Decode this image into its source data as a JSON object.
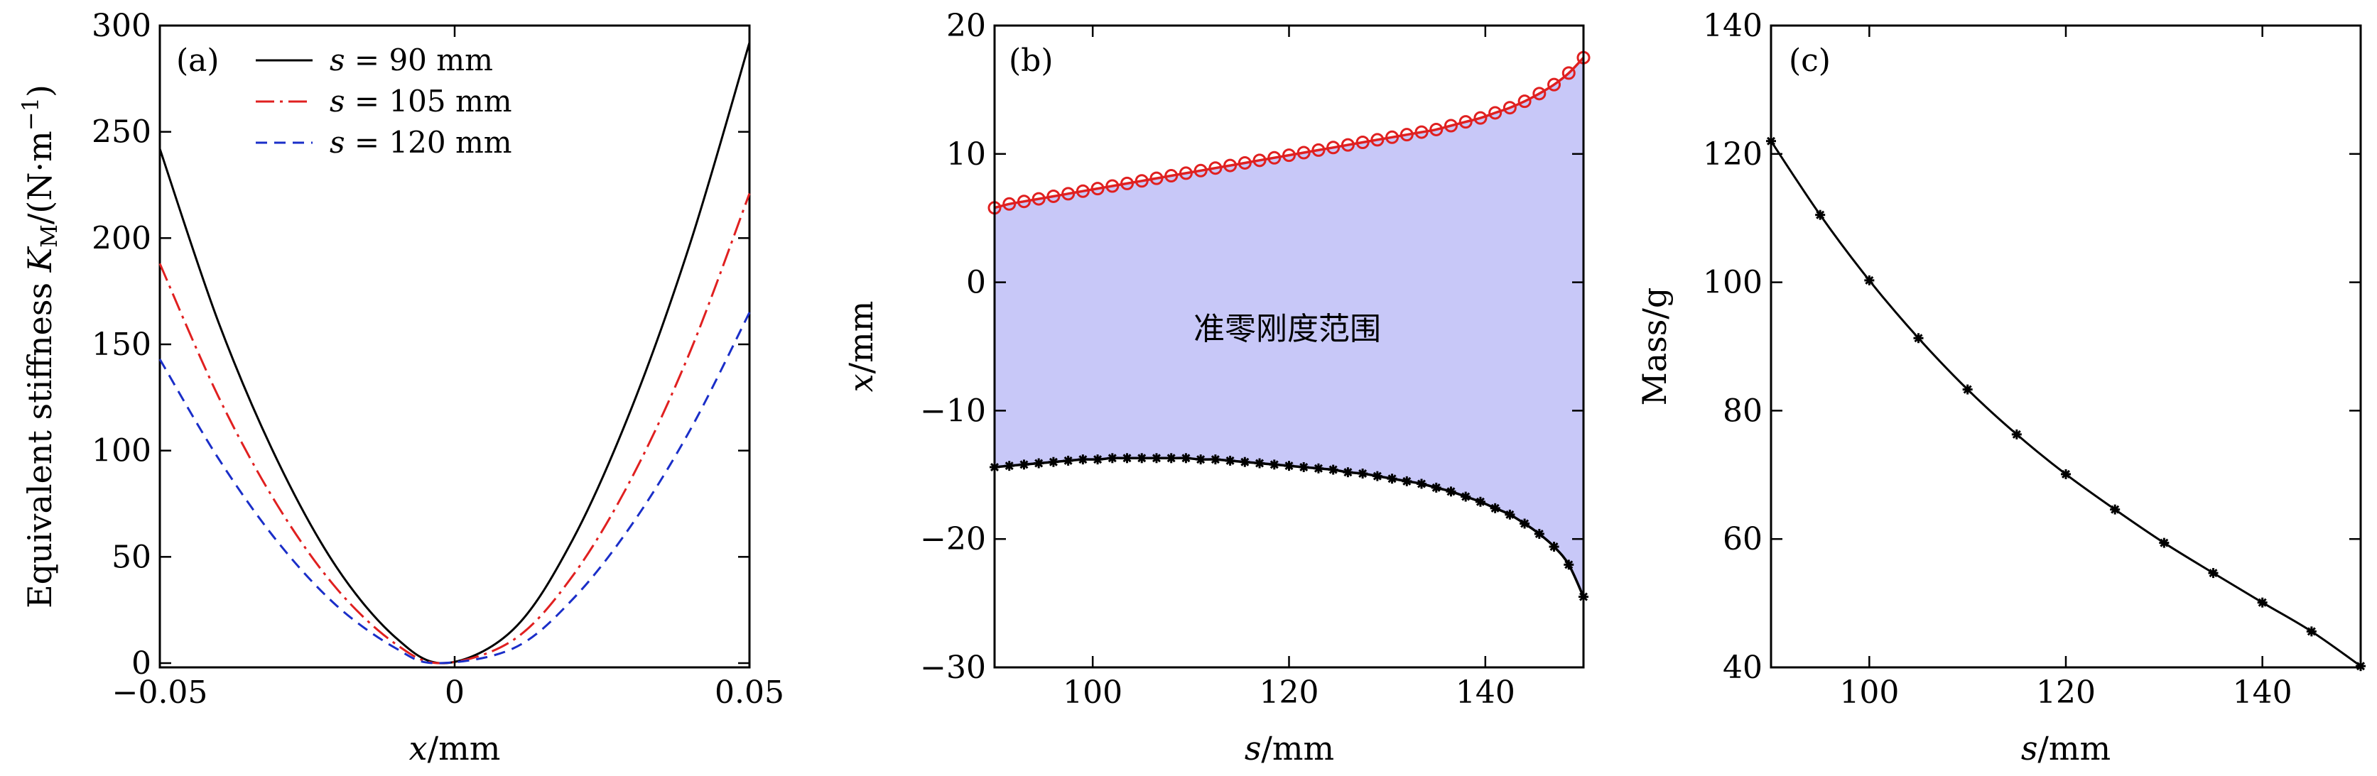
{
  "chart_data": [
    {
      "panel": "(a)",
      "type": "line",
      "xlabel_var": "x",
      "xlabel_unit": "/mm",
      "ylabel_text": "Equivalent stiffness ",
      "ylabel_var": "K",
      "ylabel_sub": "M",
      "ylabel_unit": "/(N·m",
      "ylabel_exp": "−1",
      "ylabel_close": ")",
      "xlim": [
        -0.05,
        0.05
      ],
      "ylim": [
        0,
        300
      ],
      "xticks": [
        -0.05,
        0,
        0.05
      ],
      "xtick_labels": [
        "−0.05",
        "0",
        "0.05"
      ],
      "yticks": [
        0,
        50,
        100,
        150,
        200,
        250,
        300
      ],
      "ytick_labels": [
        "0",
        "50",
        "100",
        "150",
        "200",
        "250",
        "300"
      ],
      "legend_position": "top-left",
      "series": [
        {
          "name": "s = 90 mm",
          "legend_var": "s",
          "legend_rest": " = 90 mm",
          "color": "#000000",
          "dash": "",
          "x": [
            -0.05,
            -0.04,
            -0.03,
            -0.02,
            -0.01,
            -0.0015,
            0.01,
            0.02,
            0.03,
            0.04,
            0.05
          ],
          "y": [
            242,
            160,
            95,
            45,
            12,
            0,
            16,
            58,
            120,
            198,
            292
          ]
        },
        {
          "name": "s = 105 mm",
          "legend_var": "s",
          "legend_rest": " = 105 mm",
          "color": "#e02020",
          "dash": "26,8,4,8",
          "x": [
            -0.05,
            -0.04,
            -0.03,
            -0.02,
            -0.01,
            -0.002,
            0.01,
            0.02,
            0.03,
            0.04,
            0.05
          ],
          "y": [
            188,
            125,
            74,
            35,
            9,
            0,
            11,
            41,
            87,
            147,
            221
          ]
        },
        {
          "name": "s = 120 mm",
          "legend_var": "s",
          "legend_rest": " = 120 mm",
          "color": "#1a2ec8",
          "dash": "16,10",
          "x": [
            -0.05,
            -0.04,
            -0.03,
            -0.02,
            -0.01,
            -0.003,
            0.01,
            0.02,
            0.03,
            0.04,
            0.05
          ],
          "y": [
            143,
            96,
            57,
            27,
            7,
            0,
            7,
            30,
            65,
            110,
            165
          ]
        }
      ]
    },
    {
      "panel": "(b)",
      "type": "area",
      "xlabel_var": "s",
      "xlabel_unit": "/mm",
      "ylabel_var": "x",
      "ylabel_unit": "/mm",
      "xlim": [
        90,
        150
      ],
      "ylim": [
        -30,
        20
      ],
      "xticks": [
        100,
        120,
        140
      ],
      "xtick_labels": [
        "100",
        "120",
        "140"
      ],
      "yticks": [
        -30,
        -20,
        -10,
        0,
        10,
        20
      ],
      "ytick_labels": [
        "−30",
        "−20",
        "−10",
        "0",
        "10",
        "20"
      ],
      "region_label": "准零刚度范围",
      "fill_color": "#c8c8f8",
      "upper": {
        "color": "#e02020",
        "marker": "circle",
        "x": [
          90,
          91.5,
          93,
          94.5,
          96,
          97.5,
          99,
          100.5,
          102,
          103.5,
          105,
          106.5,
          108,
          109.5,
          111,
          112.5,
          114,
          115.5,
          117,
          118.5,
          120,
          121.5,
          123,
          124.5,
          126,
          127.5,
          129,
          130.5,
          132,
          133.5,
          135,
          136.5,
          138,
          139.5,
          141,
          142.5,
          144,
          145.5,
          147,
          148.5,
          150
        ],
        "y": [
          5.8,
          6.1,
          6.3,
          6.5,
          6.7,
          6.9,
          7.1,
          7.3,
          7.5,
          7.7,
          7.9,
          8.1,
          8.3,
          8.5,
          8.7,
          8.9,
          9.1,
          9.3,
          9.5,
          9.7,
          9.9,
          10.1,
          10.3,
          10.5,
          10.7,
          10.9,
          11.1,
          11.3,
          11.5,
          11.7,
          11.9,
          12.2,
          12.5,
          12.8,
          13.2,
          13.6,
          14.1,
          14.7,
          15.4,
          16.3,
          17.5
        ]
      },
      "lower": {
        "color": "#000000",
        "marker": "asterisk",
        "x": [
          90,
          91.5,
          93,
          94.5,
          96,
          97.5,
          99,
          100.5,
          102,
          103.5,
          105,
          106.5,
          108,
          109.5,
          111,
          112.5,
          114,
          115.5,
          117,
          118.5,
          120,
          121.5,
          123,
          124.5,
          126,
          127.5,
          129,
          130.5,
          132,
          133.5,
          135,
          136.5,
          138,
          139.5,
          141,
          142.5,
          144,
          145.5,
          147,
          148.5,
          150
        ],
        "y": [
          -14.4,
          -14.3,
          -14.2,
          -14.1,
          -14.0,
          -13.9,
          -13.8,
          -13.8,
          -13.7,
          -13.7,
          -13.7,
          -13.7,
          -13.7,
          -13.7,
          -13.8,
          -13.8,
          -13.9,
          -14.0,
          -14.1,
          -14.2,
          -14.3,
          -14.4,
          -14.5,
          -14.6,
          -14.8,
          -14.9,
          -15.1,
          -15.3,
          -15.5,
          -15.7,
          -16.0,
          -16.3,
          -16.7,
          -17.1,
          -17.6,
          -18.1,
          -18.8,
          -19.6,
          -20.6,
          -22.0,
          -24.5
        ]
      }
    },
    {
      "panel": "(c)",
      "type": "line",
      "xlabel_var": "s",
      "xlabel_unit": "/mm",
      "ylabel_text": "Mass/g",
      "xlim": [
        90,
        150
      ],
      "ylim": [
        40,
        140
      ],
      "xticks": [
        100,
        120,
        140
      ],
      "xtick_labels": [
        "100",
        "120",
        "140"
      ],
      "yticks": [
        40,
        60,
        80,
        100,
        120,
        140
      ],
      "ytick_labels": [
        "40",
        "60",
        "80",
        "100",
        "120",
        "140"
      ],
      "series": [
        {
          "name": "Mass",
          "color": "#000000",
          "marker": "asterisk",
          "x": [
            90,
            95,
            100,
            105,
            110,
            115,
            120,
            125,
            130,
            135,
            140,
            145,
            150
          ],
          "y": [
            122.0,
            110.5,
            100.3,
            91.3,
            83.3,
            76.3,
            70.1,
            64.6,
            59.4,
            54.7,
            50.1,
            45.6,
            40.2
          ]
        }
      ]
    }
  ]
}
